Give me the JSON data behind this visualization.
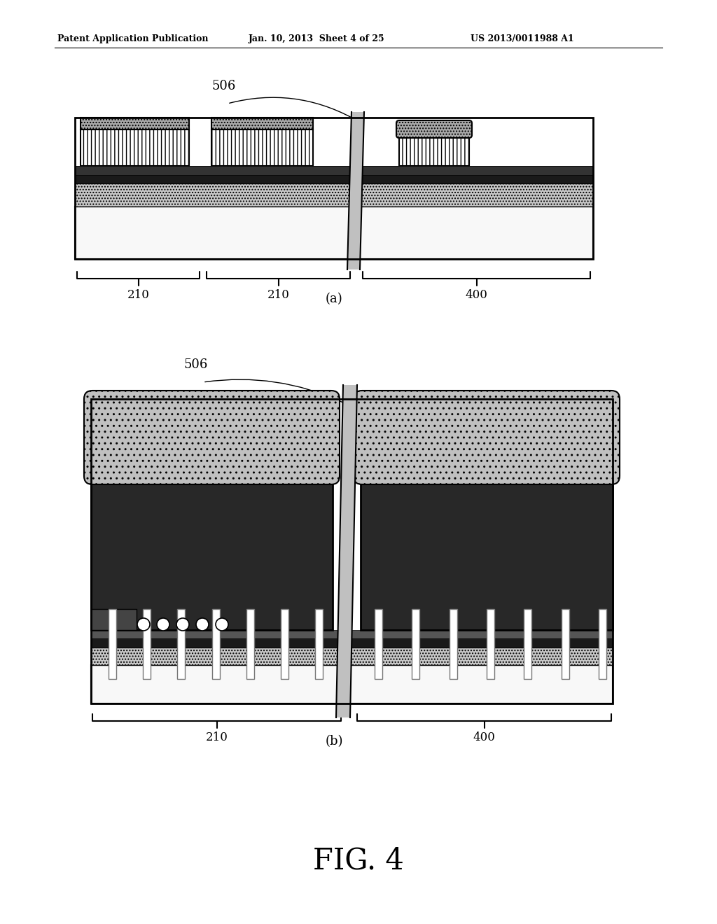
{
  "bg_color": "#ffffff",
  "header_left": "Patent Application Publication",
  "header_mid": "Jan. 10, 2013  Sheet 4 of 25",
  "header_right": "US 2013/0011988 A1",
  "fig_label": "FIG. 4",
  "sub_a_label": "(a)",
  "sub_b_label": "(b)",
  "label_506_a": "506",
  "label_210_a1": "210",
  "label_210_a2": "210",
  "label_400_a": "400",
  "label_506_b": "506",
  "label_210_b": "210",
  "label_400_b": "400",
  "c_white": "#ffffff",
  "c_substrate": "#f8f8f8",
  "c_dot_layer": "#c8c8c8",
  "c_dark_band": "#1a1a1a",
  "c_dark_band2": "#333333",
  "c_gray_gate": "#aaaaaa",
  "c_struct_dark": "#282828",
  "c_cap_light": "#c0c0c0",
  "c_cut_plane": "#c0c0c0",
  "c_pillar": "#ffffff",
  "c_pillar_edge": "#888888"
}
